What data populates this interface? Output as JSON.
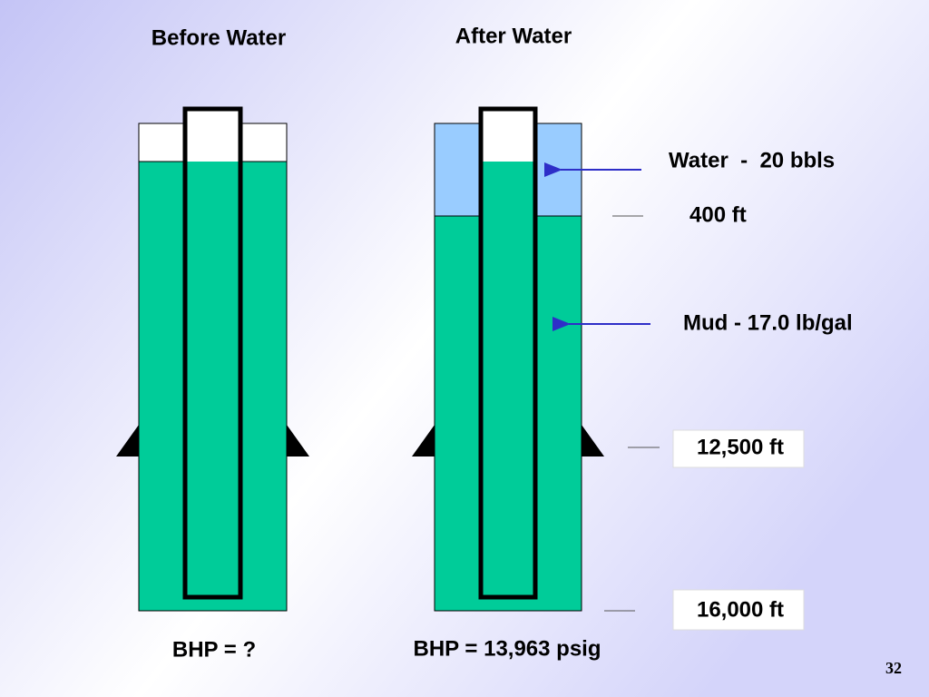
{
  "titles": {
    "before": "Before Water",
    "after": "After Water"
  },
  "labels": {
    "water": "Water  -  20 bbls",
    "water_depth": "400 ft",
    "mud": "Mud - 17.0 lb/gal",
    "shoe_depth": "12,500 ft",
    "total_depth": "16,000 ft"
  },
  "results": {
    "before": "BHP = ?",
    "after": "BHP = 13,963 psig"
  },
  "page_number": "32"
}
